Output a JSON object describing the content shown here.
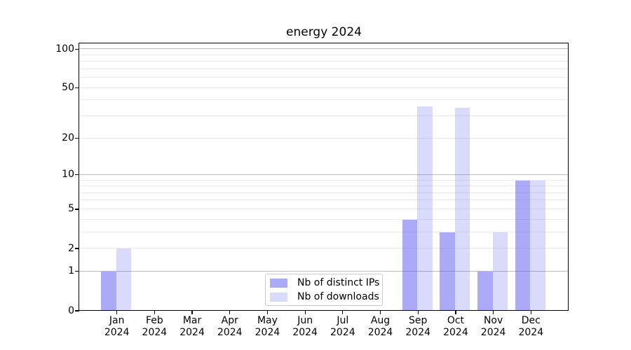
{
  "chart_data": {
    "type": "bar",
    "title": "energy 2024",
    "xlabel": "",
    "ylabel": "",
    "categories": [
      "Jan",
      "Feb",
      "Mar",
      "Apr",
      "May",
      "Jun",
      "Jul",
      "Aug",
      "Sep",
      "Oct",
      "Nov",
      "Dec"
    ],
    "year": "2024",
    "series": [
      {
        "name": "Nb of distinct IPs",
        "color": "rgba(85,85,238,0.5)",
        "values": [
          1,
          0,
          0,
          0,
          0,
          0,
          0,
          0,
          4,
          3,
          1,
          9
        ]
      },
      {
        "name": "Nb of downloads",
        "color": "rgba(85,85,238,0.22)",
        "values": [
          2,
          0,
          0,
          0,
          0,
          0,
          0,
          0,
          36,
          35,
          3,
          9
        ]
      }
    ],
    "y_scale": "log10(1+x)",
    "ylim": [
      0,
      111
    ],
    "y_ticks": [
      0,
      1,
      2,
      5,
      10,
      20,
      50,
      100
    ],
    "major_gridlines": [
      1,
      10,
      100
    ],
    "minor_gridlines": [
      2,
      3,
      4,
      5,
      6,
      7,
      8,
      9,
      20,
      30,
      40,
      50,
      60,
      70,
      80,
      90
    ],
    "grid": "horizontal",
    "legend_position": "lower center",
    "colors": {
      "major_grid": "#bcbcbc",
      "minor_grid": "#ebebeb",
      "spine": "#000000"
    }
  }
}
